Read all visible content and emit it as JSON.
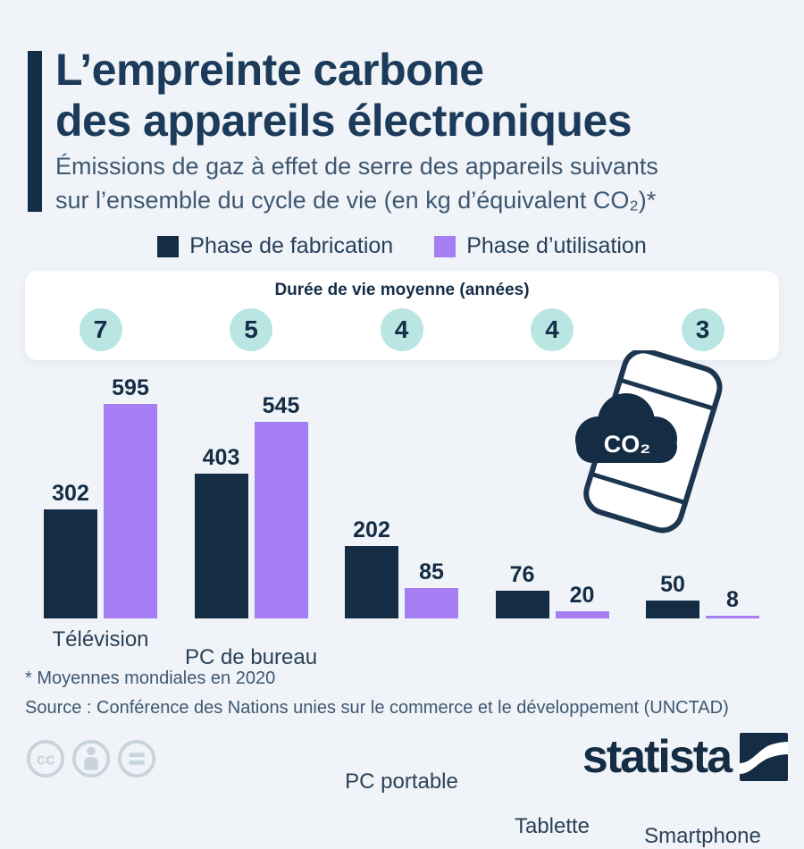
{
  "header": {
    "title_line1": "L’empreinte carbone",
    "title_line2": "des appareils électroniques",
    "subtitle_line1": "Émissions de gaz à effet de serre des appareils suivants",
    "subtitle_line2": "sur l’ensemble du cycle de vie (en kg d’équivalent CO₂)*"
  },
  "legend": {
    "items": [
      {
        "label": "Phase de fabrication",
        "color": "#142c44"
      },
      {
        "label": "Phase d’utilisation",
        "color": "#a47ef2"
      }
    ]
  },
  "lifespan_panel": {
    "title": "Durée de vie moyenne (années)",
    "values": [
      "7",
      "5",
      "4",
      "4",
      "3"
    ],
    "circle_color": "#b9e6e2"
  },
  "chart_data": {
    "type": "bar",
    "categories": [
      "Télévision",
      "PC de bureau",
      "PC portable",
      "Tablette",
      "Smartphone"
    ],
    "series": [
      {
        "name": "Phase de fabrication",
        "color": "#142c44",
        "values": [
          302,
          403,
          202,
          76,
          50
        ]
      },
      {
        "name": "Phase d’utilisation",
        "color": "#a47ef2",
        "values": [
          595,
          545,
          85,
          20,
          8
        ]
      }
    ],
    "lifespan_years": [
      7,
      5,
      4,
      4,
      3
    ],
    "unit": "kg d’équivalent CO₂",
    "ylim": [
      0,
      620
    ],
    "grid": false,
    "value_labels": true,
    "legend_position": "top"
  },
  "phone_icon": {
    "co2_label": "CO₂"
  },
  "footer": {
    "footnote": "* Moyennes mondiales en 2020",
    "source": "Source : Conférence des Nations unies sur le commerce et le développement (UNCTAD)",
    "brand": "statista"
  },
  "colors": {
    "background": "#f0f4f8",
    "navy": "#142c44",
    "purple": "#a47ef2",
    "teal": "#b9e6e2",
    "title": "#1c3a59",
    "subtitle": "#3e5771",
    "cc_gray": "#c9d3dc"
  }
}
